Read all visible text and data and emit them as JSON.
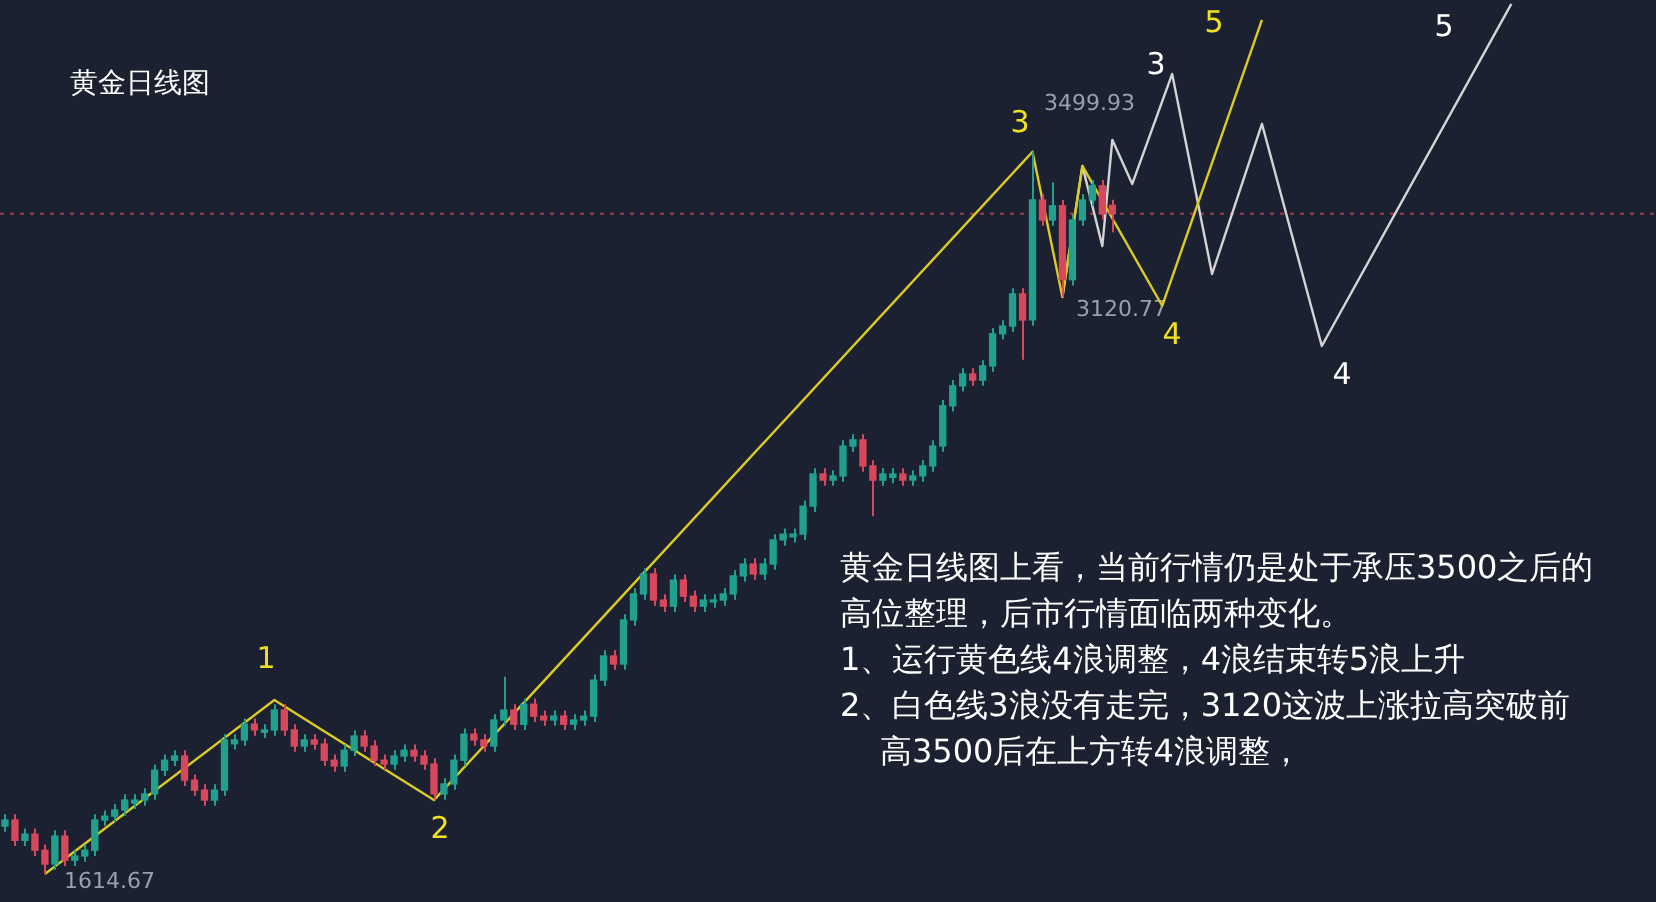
{
  "chart_data": {
    "type": "candlestick",
    "title": "黄金日线图",
    "categories": [
      null,
      null,
      null,
      null,
      null,
      null,
      null,
      null,
      null,
      null,
      null,
      null,
      null,
      null,
      null,
      null,
      null,
      null,
      null,
      null,
      null,
      null,
      null,
      null,
      null,
      null,
      null,
      null,
      null,
      null,
      null,
      null,
      null,
      null,
      null,
      null,
      null,
      null,
      null,
      null,
      null,
      null,
      null,
      null,
      null,
      null,
      null,
      null,
      null,
      null,
      null,
      null,
      null,
      null,
      null,
      null,
      null,
      null,
      null,
      null,
      null,
      null,
      null,
      null,
      null,
      null,
      null,
      null,
      null,
      null,
      null,
      null,
      null,
      null,
      null,
      null,
      null,
      null,
      null,
      null,
      null,
      null,
      null,
      null,
      null,
      null,
      null,
      null,
      null,
      null,
      null,
      null,
      null,
      null,
      null,
      null,
      null,
      null,
      null,
      null,
      null,
      null,
      null,
      null,
      null,
      null,
      null,
      null,
      null,
      null,
      null,
      null,
      null,
      null,
      null,
      null,
      null,
      null,
      null,
      null,
      null,
      null,
      null,
      null,
      null,
      null,
      null,
      null,
      null,
      null,
      null,
      null,
      null,
      null,
      null,
      null,
      null,
      null,
      null,
      null,
      null,
      null,
      null,
      null,
      null,
      null,
      null,
      null,
      null,
      null,
      null,
      null,
      null,
      null,
      null,
      null,
      null,
      null,
      null,
      null,
      null,
      null,
      null,
      null,
      null,
      null
    ],
    "ohlc": [
      [
        1740,
        1771,
        1725,
        1756
      ],
      [
        1756,
        1771,
        1688,
        1703
      ],
      [
        1703,
        1734,
        1688,
        1719
      ],
      [
        1719,
        1734,
        1662,
        1677
      ],
      [
        1677,
        1692,
        1614.67,
        1641
      ],
      [
        1641,
        1729,
        1626,
        1714
      ],
      [
        1714,
        1729,
        1636,
        1651
      ],
      [
        1651,
        1677,
        1636,
        1662
      ],
      [
        1662,
        1692,
        1647,
        1677
      ],
      [
        1677,
        1771,
        1662,
        1756
      ],
      [
        1756,
        1781,
        1741,
        1766
      ],
      [
        1766,
        1797,
        1751,
        1782
      ],
      [
        1782,
        1823,
        1767,
        1808
      ],
      [
        1800,
        1823,
        1785,
        1808
      ],
      [
        1808,
        1839,
        1793,
        1824
      ],
      [
        1824,
        1901,
        1809,
        1886
      ],
      [
        1886,
        1927,
        1871,
        1912
      ],
      [
        1912,
        1938,
        1897,
        1923
      ],
      [
        1923,
        1938,
        1845,
        1860
      ],
      [
        1860,
        1875,
        1819,
        1834
      ],
      [
        1834,
        1849,
        1793,
        1808
      ],
      [
        1808,
        1849,
        1793,
        1834
      ],
      [
        1834,
        1980,
        1819,
        1965
      ],
      [
        1955,
        1980,
        1940,
        1965
      ],
      [
        1965,
        2021,
        1950,
        2006
      ],
      [
        2006,
        2021,
        1976,
        1991
      ],
      [
        1985,
        2006,
        1970,
        1991
      ],
      [
        1991,
        2058,
        1976,
        2043
      ],
      [
        2043,
        2058,
        1976,
        1991
      ],
      [
        1991,
        2006,
        1934,
        1949
      ],
      [
        1949,
        1980,
        1934,
        1965
      ],
      [
        1965,
        1980,
        1939,
        1954
      ],
      [
        1954,
        1969,
        1897,
        1912
      ],
      [
        1912,
        1927,
        1882,
        1897
      ],
      [
        1897,
        1953,
        1882,
        1938
      ],
      [
        1938,
        1990,
        1923,
        1975
      ],
      [
        1975,
        1990,
        1934,
        1949
      ],
      [
        1949,
        1964,
        1897,
        1912
      ],
      [
        1912,
        1927,
        1887,
        1902
      ],
      [
        1902,
        1938,
        1887,
        1923
      ],
      [
        1923,
        1953,
        1908,
        1938
      ],
      [
        1938,
        1953,
        1908,
        1923
      ],
      [
        1923,
        1938,
        1887,
        1902
      ],
      [
        1902,
        1917,
        1809,
        1824
      ],
      [
        1824,
        1865,
        1809,
        1850
      ],
      [
        1850,
        1927,
        1835,
        1912
      ],
      [
        1912,
        1995,
        1897,
        1980
      ],
      [
        1980,
        1995,
        1950,
        1965
      ],
      [
        1965,
        1980,
        1934,
        1949
      ],
      [
        1949,
        2032,
        1934,
        2017
      ],
      [
        2017,
        2130,
        2002,
        2043
      ],
      [
        2043,
        2058,
        1991,
        2006
      ],
      [
        2006,
        2073,
        1991,
        2058
      ],
      [
        2058,
        2073,
        2012,
        2027
      ],
      [
        2027,
        2042,
        2002,
        2017
      ],
      [
        2017,
        2042,
        2002,
        2027
      ],
      [
        2027,
        2042,
        1991,
        2006
      ],
      [
        2006,
        2032,
        1991,
        2017
      ],
      [
        2017,
        2042,
        2002,
        2027
      ],
      [
        2027,
        2136,
        2012,
        2121
      ],
      [
        2121,
        2199,
        2106,
        2184
      ],
      [
        2184,
        2199,
        2148,
        2163
      ],
      [
        2163,
        2293,
        2148,
        2278
      ],
      [
        2278,
        2361,
        2263,
        2346
      ],
      [
        2346,
        2413,
        2331,
        2398
      ],
      [
        2398,
        2413,
        2315,
        2330
      ],
      [
        2330,
        2345,
        2299,
        2314
      ],
      [
        2314,
        2397,
        2299,
        2382
      ],
      [
        2382,
        2397,
        2325,
        2340
      ],
      [
        2340,
        2355,
        2299,
        2314
      ],
      [
        2314,
        2345,
        2299,
        2330
      ],
      [
        2325,
        2345,
        2310,
        2330
      ],
      [
        2330,
        2361,
        2315,
        2346
      ],
      [
        2346,
        2408,
        2331,
        2393
      ],
      [
        2393,
        2439,
        2378,
        2424
      ],
      [
        2424,
        2439,
        2383,
        2398
      ],
      [
        2398,
        2439,
        2383,
        2424
      ],
      [
        2424,
        2502,
        2409,
        2487
      ],
      [
        2487,
        2517,
        2472,
        2502
      ],
      [
        2495,
        2517,
        2480,
        2502
      ],
      [
        2502,
        2590,
        2487,
        2575
      ],
      [
        2575,
        2674,
        2560,
        2659
      ],
      [
        2659,
        2674,
        2628,
        2643
      ],
      [
        2643,
        2669,
        2628,
        2654
      ],
      [
        2654,
        2747,
        2639,
        2732
      ],
      [
        2732,
        2763,
        2717,
        2748
      ],
      [
        2748,
        2763,
        2665,
        2680
      ],
      [
        2680,
        2695,
        2549,
        2643
      ],
      [
        2643,
        2674,
        2628,
        2659
      ],
      [
        2650,
        2674,
        2635,
        2659
      ],
      [
        2659,
        2674,
        2628,
        2643
      ],
      [
        2643,
        2669,
        2628,
        2654
      ],
      [
        2654,
        2695,
        2639,
        2680
      ],
      [
        2680,
        2747,
        2665,
        2732
      ],
      [
        2732,
        2852,
        2717,
        2837
      ],
      [
        2837,
        2904,
        2822,
        2889
      ],
      [
        2889,
        2935,
        2874,
        2920
      ],
      [
        2920,
        2935,
        2889,
        2904
      ],
      [
        2904,
        2956,
        2889,
        2941
      ],
      [
        2941,
        3040,
        2926,
        3025
      ],
      [
        3025,
        3060,
        3010,
        3045
      ],
      [
        3045,
        3144,
        3030,
        3129
      ],
      [
        3129,
        3144,
        2957,
        3061
      ],
      [
        3061,
        3499.93,
        3046,
        3374
      ],
      [
        3374,
        3389,
        3307,
        3322
      ],
      [
        3322,
        3420,
        3307,
        3359
      ],
      [
        3359,
        3374,
        3120.77,
        3166
      ],
      [
        3166,
        3337,
        3151,
        3322
      ],
      [
        3322,
        3389,
        3307,
        3374
      ],
      [
        3374,
        3426,
        3359,
        3411
      ],
      [
        3411,
        3426,
        3323,
        3338
      ],
      [
        3360,
        3375,
        3290,
        3338
      ],
      null,
      null,
      null,
      null,
      null,
      null,
      null,
      null,
      null,
      null,
      null,
      null,
      null,
      null,
      null,
      null,
      null,
      null,
      null,
      null,
      null,
      null,
      null,
      null,
      null,
      null,
      null,
      null,
      null,
      null,
      null,
      null,
      null,
      null,
      null,
      null,
      null,
      null,
      null,
      null,
      null,
      null,
      null,
      null,
      null,
      null,
      null,
      null,
      null,
      null,
      null,
      null,
      null,
      null
    ],
    "colors": [
      "#22a08e",
      "#d8485c",
      "#22a08e",
      "#d8485c",
      "#d8485c",
      "#22a08e",
      "#d8485c",
      "#22a08e",
      "#22a08e",
      "#22a08e",
      "#22a08e",
      "#22a08e",
      "#22a08e",
      "#22a08e",
      "#22a08e",
      "#22a08e",
      "#22a08e",
      "#22a08e",
      "#d8485c",
      "#d8485c",
      "#d8485c",
      "#22a08e",
      "#22a08e",
      "#22a08e",
      "#22a08e",
      "#d8485c",
      "#22a08e",
      "#22a08e",
      "#d8485c",
      "#d8485c",
      "#22a08e",
      "#d8485c",
      "#d8485c",
      "#d8485c",
      "#22a08e",
      "#22a08e",
      "#d8485c",
      "#d8485c",
      "#d8485c",
      "#22a08e",
      "#22a08e",
      "#d8485c",
      "#d8485c",
      "#d8485c",
      "#22a08e",
      "#22a08e",
      "#22a08e",
      "#d8485c",
      "#d8485c",
      "#22a08e",
      "#22a08e",
      "#d8485c",
      "#22a08e",
      "#d8485c",
      "#d8485c",
      "#22a08e",
      "#d8485c",
      "#22a08e",
      "#22a08e",
      "#22a08e",
      "#22a08e",
      "#d8485c",
      "#22a08e",
      "#22a08e",
      "#22a08e",
      "#d8485c",
      "#d8485c",
      "#22a08e",
      "#d8485c",
      "#d8485c",
      "#22a08e",
      "#22a08e",
      "#22a08e",
      "#22a08e",
      "#22a08e",
      "#d8485c",
      "#22a08e",
      "#22a08e",
      "#22a08e",
      "#22a08e",
      "#22a08e",
      "#22a08e",
      "#d8485c",
      "#22a08e",
      "#22a08e",
      "#22a08e",
      "#d8485c",
      "#d8485c",
      "#22a08e",
      "#22a08e",
      "#d8485c",
      "#22a08e",
      "#22a08e",
      "#22a08e",
      "#22a08e",
      "#22a08e",
      "#22a08e",
      "#d8485c",
      "#22a08e",
      "#22a08e",
      "#22a08e",
      "#22a08e",
      "#d8485c",
      "#22a08e",
      "#d8485c",
      "#22a08e",
      "#d8485c",
      "#22a08e",
      "#22a08e",
      "#22a08e",
      "#d8485c",
      "#d8485c",
      null,
      null,
      null,
      null,
      null,
      null,
      null,
      null,
      null,
      null,
      null,
      null,
      null,
      null,
      null,
      null,
      null,
      null,
      null,
      null,
      null,
      null,
      null,
      null,
      null,
      null,
      null,
      null,
      null,
      null,
      null,
      null,
      null,
      null,
      null,
      null,
      null,
      null,
      null,
      null,
      null,
      null,
      null,
      null,
      null,
      null,
      null,
      null,
      null,
      null,
      null,
      null,
      null,
      null
    ],
    "series": [
      {
        "type": "line",
        "color": "#dccb22",
        "values": [
          null,
          null,
          null,
          null,
          1615,
          null,
          null,
          null,
          null,
          null,
          null,
          null,
          null,
          null,
          null,
          null,
          null,
          null,
          null,
          null,
          null,
          null,
          null,
          null,
          null,
          null,
          null,
          2069,
          null,
          null,
          null,
          null,
          null,
          null,
          null,
          null,
          null,
          null,
          null,
          null,
          null,
          null,
          null,
          1808,
          null,
          null,
          null,
          null,
          null,
          null,
          null,
          null,
          null,
          null,
          null,
          null,
          null,
          null,
          null,
          null,
          null,
          null,
          null,
          null,
          null,
          null,
          null,
          null,
          null,
          null,
          null,
          null,
          null,
          null,
          null,
          null,
          null,
          null,
          null,
          null,
          null,
          null,
          null,
          null,
          null,
          null,
          null,
          null,
          null,
          null,
          null,
          null,
          null,
          null,
          null,
          null,
          null,
          null,
          null,
          null,
          null,
          null,
          null,
          3500,
          null,
          null,
          3121,
          null,
          3463,
          null,
          null,
          null,
          null,
          null,
          null,
          null,
          3098,
          null,
          null,
          null,
          null,
          null,
          null,
          null,
          null,
          null,
          3844,
          null,
          null,
          null,
          null,
          null,
          null,
          null,
          null,
          null,
          null,
          null,
          null,
          null,
          null,
          null,
          null,
          null,
          null,
          null,
          null,
          null,
          null,
          null,
          null,
          null,
          null,
          null,
          null,
          null,
          null,
          null,
          null,
          null,
          null,
          null,
          null,
          null,
          null,
          null
        ]
      },
      {
        "type": "line",
        "color": "#d4d4d4",
        "values": [
          null,
          null,
          null,
          null,
          null,
          null,
          null,
          null,
          null,
          null,
          null,
          null,
          null,
          null,
          null,
          null,
          null,
          null,
          null,
          null,
          null,
          null,
          null,
          null,
          null,
          null,
          null,
          null,
          null,
          null,
          null,
          null,
          null,
          null,
          null,
          null,
          null,
          null,
          null,
          null,
          null,
          null,
          null,
          null,
          null,
          null,
          null,
          null,
          null,
          null,
          null,
          null,
          null,
          null,
          null,
          null,
          null,
          null,
          null,
          null,
          null,
          null,
          null,
          null,
          null,
          null,
          null,
          null,
          null,
          null,
          null,
          null,
          null,
          null,
          null,
          null,
          null,
          null,
          null,
          null,
          null,
          null,
          null,
          null,
          null,
          null,
          null,
          null,
          null,
          null,
          null,
          null,
          null,
          null,
          null,
          null,
          null,
          null,
          null,
          null,
          null,
          null,
          null,
          null,
          null,
          null,
          3121,
          null,
          3463,
          null,
          3254,
          3531,
          null,
          3416,
          null,
          null,
          null,
          3703,
          null,
          null,
          null,
          3181,
          null,
          null,
          null,
          null,
          3573,
          null,
          null,
          null,
          null,
          null,
          2993,
          null,
          null,
          null,
          null,
          null,
          null,
          null,
          null,
          null,
          null,
          null,
          null,
          null,
          null,
          null,
          null,
          null,
          null,
          3886,
          null,
          null,
          null,
          null,
          null,
          null,
          null,
          null,
          null,
          null,
          null,
          null,
          null,
          null
        ]
      }
    ],
    "ref_lines": [
      {
        "axis": "y",
        "value": 3338,
        "color": "#8a3a48",
        "line_style": "dotted"
      }
    ],
    "annotations": [
      "1614.67",
      "3499.93",
      "3120.77",
      "1",
      "2",
      "3",
      "4",
      "5",
      "3",
      "4",
      "5",
      "黄金日线图上看，当前行情仍是处于承压3500之后的高位整理，后市行情面临两种变化。",
      "1、运行黄色线4浪调整，4浪结束转5浪上升",
      "2、白色线3浪没有走完，3120这波上涨拉高突破前高3500后在上方转4浪调整，"
    ],
    "tick_labels": false,
    "legend": false
  }
}
